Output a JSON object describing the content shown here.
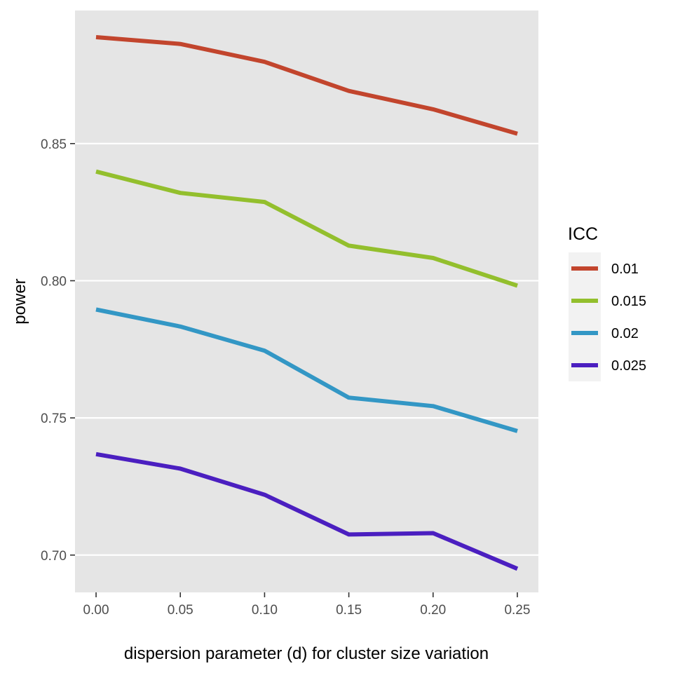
{
  "chart_data": {
    "type": "line",
    "xlabel": "dispersion parameter (d) for cluster size variation",
    "ylabel": "power",
    "x": [
      0.0,
      0.05,
      0.1,
      0.15,
      0.2,
      0.25
    ],
    "x_ticks": [
      "0.00",
      "0.05",
      "0.10",
      "0.15",
      "0.20",
      "0.25"
    ],
    "xlim": [
      -0.0125,
      0.2625
    ],
    "y_ticks": [
      "0.70",
      "0.75",
      "0.80",
      "0.85"
    ],
    "ylim": [
      0.6864,
      0.8985
    ],
    "grid": true,
    "legend_title": "ICC",
    "legend_position": "right",
    "series": [
      {
        "name": "0.01",
        "color": "#c2452d",
        "values": [
          0.8888,
          0.8863,
          0.8798,
          0.8692,
          0.8625,
          0.8536
        ]
      },
      {
        "name": "0.015",
        "color": "#93bf2d",
        "values": [
          0.8398,
          0.832,
          0.8287,
          0.8128,
          0.8083,
          0.7982
        ]
      },
      {
        "name": "0.02",
        "color": "#3397c5",
        "values": [
          0.7895,
          0.7833,
          0.7745,
          0.7574,
          0.7543,
          0.7452
        ]
      },
      {
        "name": "0.025",
        "color": "#4b1fc0",
        "values": [
          0.7368,
          0.7315,
          0.722,
          0.7075,
          0.708,
          0.695
        ]
      }
    ]
  }
}
